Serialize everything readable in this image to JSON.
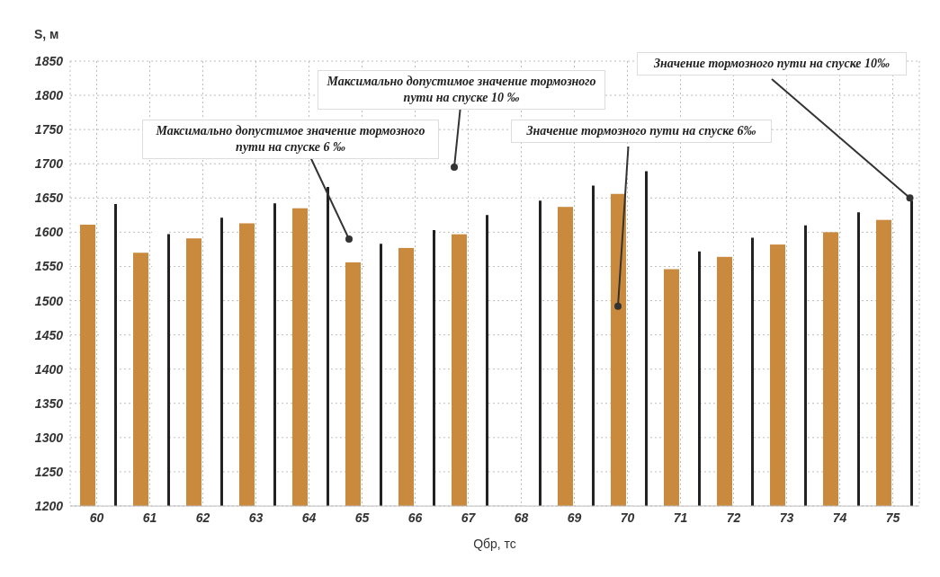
{
  "chart_data": {
    "type": "bar",
    "xlabel": "Qбр, тс",
    "ylabel": "S, м",
    "categories": [
      "60",
      "61",
      "62",
      "63",
      "64",
      "65",
      "66",
      "67",
      "68",
      "69",
      "70",
      "71",
      "72",
      "73",
      "74",
      "75"
    ],
    "series": [
      {
        "name": "Значение тормозного пути на спуске 6‰",
        "color": "#c98a3e",
        "values": [
          1611,
          1570,
          1591,
          1613,
          1635,
          1556,
          1577,
          1597,
          null,
          1637,
          1656,
          1546,
          1564,
          1582,
          1600,
          1618
        ]
      },
      {
        "name": "Значение тормозного пути на спуске 10‰",
        "color": "#ffffff",
        "values": [
          1645,
          1601,
          1625,
          1646,
          1670,
          1587,
          1607,
          1629,
          1650,
          1672,
          1693,
          1576,
          1596,
          1614,
          1633,
          1650
        ]
      }
    ],
    "annotations": [
      "Максимально допустимое значение тормозного пути на спуске 6 ‰",
      "Максимально допустимое значение тормозного пути на спуске 10 ‰"
    ],
    "ylim": [
      1200,
      1850
    ],
    "yticks": [
      1200,
      1250,
      1300,
      1350,
      1400,
      1450,
      1500,
      1550,
      1600,
      1650,
      1700,
      1750,
      1800,
      1850
    ],
    "grid": true,
    "legend": false
  }
}
